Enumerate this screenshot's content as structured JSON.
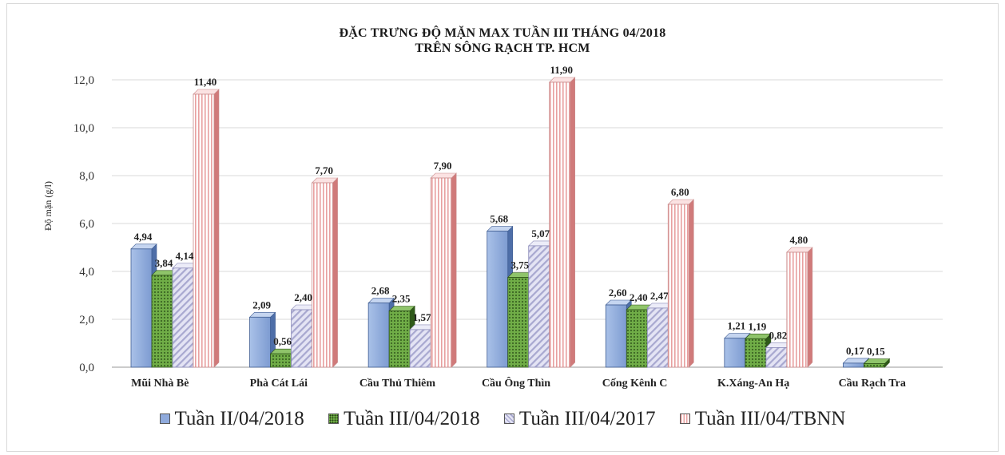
{
  "chart_data": {
    "type": "bar",
    "title_line1": "ĐẶC TRƯNG ĐỘ MẶN MAX TUẦN III THÁNG 04/2018",
    "title_line2": "TRÊN SÔNG RẠCH TP. HCM",
    "ylabel": "Độ mặn (g/l)",
    "xlabel": "",
    "ylim": [
      0,
      12
    ],
    "yticks": [
      "0,0",
      "2,0",
      "4,0",
      "6,0",
      "8,0",
      "10,0",
      "12,0"
    ],
    "grid": true,
    "legend_position": "bottom",
    "categories": [
      "Mũi Nhà Bè",
      "Phà Cát Lái",
      "Cầu Thủ Thiêm",
      "Cầu Ông Thìn",
      "Cống Kênh C",
      "K.Xáng-An Hạ",
      "Cầu Rạch Tra"
    ],
    "series": [
      {
        "name": "Tuần II/04/2018",
        "color": "#8faadc",
        "values": [
          4.94,
          2.09,
          2.68,
          5.68,
          2.6,
          1.21,
          0.17
        ],
        "labels": [
          "4,94",
          "2,09",
          "2,68",
          "5,68",
          "2,60",
          "1,21",
          "0,17"
        ]
      },
      {
        "name": "Tuần III/04/2018",
        "color": "#70ad47",
        "values": [
          3.84,
          0.56,
          2.35,
          3.75,
          2.4,
          1.19,
          0.15
        ],
        "labels": [
          "3,84",
          "0,56",
          "2,35",
          "3,75",
          "2,40",
          "1,19",
          "0,15"
        ]
      },
      {
        "name": "Tuần III/04/2017",
        "color": "#c9c9e6",
        "values": [
          4.14,
          2.4,
          1.57,
          5.07,
          2.47,
          0.82,
          null
        ],
        "labels": [
          "4,14",
          "2,40",
          "1,57",
          "5,07",
          "2,47",
          "0,82",
          ""
        ]
      },
      {
        "name": "Tuần III/04/TBNN",
        "color": "#f4c7c7",
        "values": [
          11.4,
          7.7,
          7.9,
          11.9,
          6.8,
          4.8,
          null
        ],
        "labels": [
          "11,40",
          "7,70",
          "7,90",
          "11,90",
          "6,80",
          "4,80",
          ""
        ]
      }
    ]
  }
}
